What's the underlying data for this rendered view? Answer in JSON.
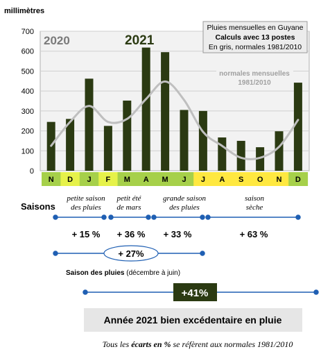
{
  "chart_data": {
    "type": "bar",
    "ylabel": "millimètres",
    "ylim": [
      0,
      700
    ],
    "yticks": [
      0,
      100,
      200,
      300,
      400,
      500,
      600,
      700
    ],
    "categories": [
      "N",
      "D",
      "J",
      "F",
      "M",
      "A",
      "M",
      "J",
      "J",
      "A",
      "S",
      "O",
      "N",
      "D"
    ],
    "series": [
      {
        "name": "2021",
        "type": "bar",
        "values": [
          245,
          260,
          462,
          225,
          352,
          618,
          595,
          305,
          300,
          167,
          150,
          118,
          198,
          442
        ]
      },
      {
        "name": "normales mensuelles 1981/2010",
        "type": "line",
        "values": [
          125,
          245,
          325,
          245,
          260,
          360,
          448,
          355,
          195,
          125,
          65,
          65,
          120,
          255
        ]
      }
    ],
    "year_labels": {
      "prev": "2020",
      "current": "2021"
    },
    "legend_box": [
      "Pluies mensuelles en Guyane",
      "Calculs avec 13 postes",
      "En gris, normales 1981/2010"
    ],
    "line_label": [
      "normales mensuelles",
      "1981/2010"
    ],
    "month_band_colors": [
      "#a6d04a",
      "#e6f24a",
      "#a6d04a",
      "#e6f24a",
      "#a6d04a",
      "#a6d04a",
      "#a6d04a",
      "#a6d04a",
      "#ffe840",
      "#ffe840",
      "#ffe840",
      "#ffe840",
      "#ffe840",
      "#a6d04a"
    ],
    "colors": {
      "bar": "#2b3a12",
      "line": "#bfbfbf",
      "grid": "#cfcfcf",
      "accent_blue": "#1f5fb3",
      "badge": "#2b3a12"
    }
  },
  "annotations": {
    "seasons_label": "Saisons",
    "seasons": [
      {
        "name_line1": "petite saison",
        "name_line2": "des pluies",
        "pct": "+ 15 %"
      },
      {
        "name_line1": "petit été",
        "name_line2": "de mars",
        "pct": "+ 36 %"
      },
      {
        "name_line1": "grande saison",
        "name_line2": "des pluies",
        "pct": "+ 33 %"
      },
      {
        "name_line1": "saison",
        "name_line2": "sèche",
        "pct": "+ 63 %"
      }
    ],
    "rainy_total": "+ 27%",
    "rainy_label_bold": "Saison des pluies",
    "rainy_label_rest": " (décembre à juin)",
    "year_total": "+41%",
    "banner": "Année 2021 bien excédentaire en pluie",
    "footnote_pre": "Tous les ",
    "footnote_bold": "écarts en %",
    "footnote_post": " se réfèrent aux normales 1981/2010"
  }
}
